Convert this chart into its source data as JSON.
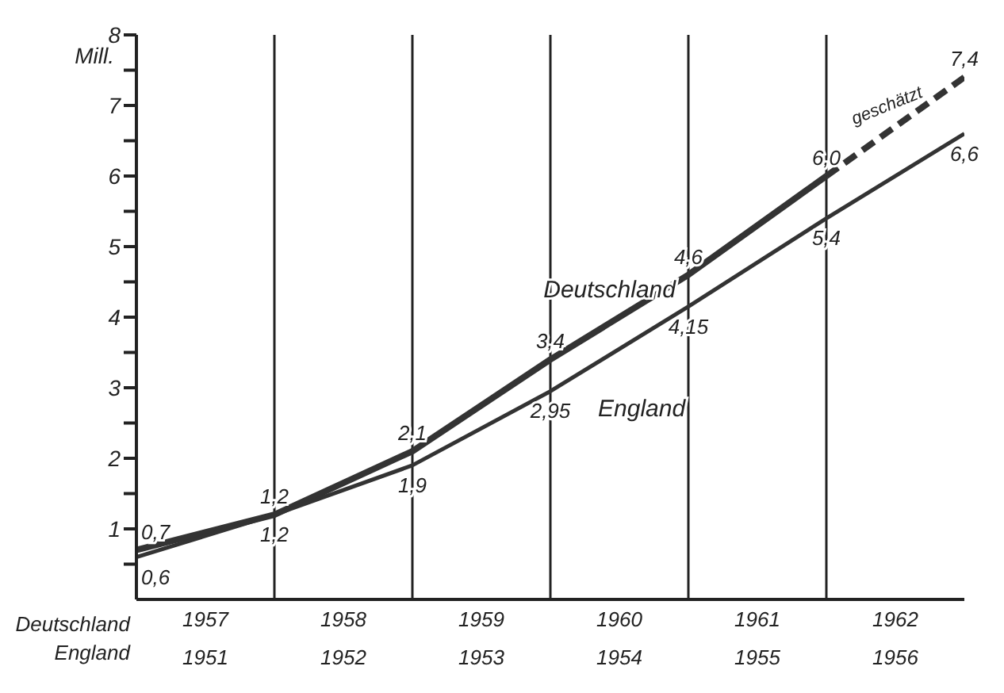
{
  "chart_data": {
    "type": "line",
    "xlabel": "Deutschland",
    "x2label": "England",
    "ylabel": "Mill.",
    "xlim": [
      1957,
      1963
    ],
    "xticks": [
      {
        "value": 1957.5,
        "label": "1957"
      },
      {
        "value": 1958.5,
        "label": "1958"
      },
      {
        "value": 1959.5,
        "label": "1959"
      },
      {
        "value": 1960.5,
        "label": "1960"
      },
      {
        "value": 1961.5,
        "label": "1961"
      },
      {
        "value": 1962.5,
        "label": "1962"
      }
    ],
    "x2lim": [
      1951,
      1957
    ],
    "x2ticks": [
      {
        "value": 1951.5,
        "label": "1951"
      },
      {
        "value": 1952.5,
        "label": "1952"
      },
      {
        "value": 1953.5,
        "label": "1953"
      },
      {
        "value": 1954.5,
        "label": "1954"
      },
      {
        "value": 1955.5,
        "label": "1955"
      },
      {
        "value": 1956.5,
        "label": "1956"
      }
    ],
    "ylim": [
      0,
      8
    ],
    "yticks": [
      {
        "value": 0.5,
        "label": null
      },
      1,
      {
        "value": 1.5,
        "label": null
      },
      2,
      {
        "value": 2.5,
        "label": null
      },
      3,
      {
        "value": 3.5,
        "label": null
      },
      4,
      {
        "value": 4.5,
        "label": null
      },
      5,
      {
        "value": 5.5,
        "label": null
      },
      6,
      {
        "value": 6.5,
        "label": null
      },
      7,
      {
        "value": 7.5,
        "label": null
      },
      8
    ],
    "ref_lines": [
      {
        "axis": "x",
        "value": 1958
      },
      {
        "axis": "x",
        "value": 1959
      },
      {
        "axis": "x",
        "value": 1960
      },
      {
        "axis": "x",
        "value": 1961
      },
      {
        "axis": "x",
        "value": 1962
      }
    ],
    "annotations": [
      "geschätzt"
    ],
    "series": [
      {
        "name": "Deutschland",
        "color": "#333333",
        "x": [
          1957,
          1958,
          1959,
          1960,
          1961,
          1962
        ],
        "values": [
          0.7,
          1.2,
          2.1,
          3.4,
          4.6,
          6.0
        ],
        "value_labels": [
          "0,7",
          "1,2",
          "2,1",
          "3,4",
          "4,6",
          "6,0"
        ]
      },
      {
        "color": "#333333",
        "line_style": "dashed",
        "x": [
          1962,
          1963
        ],
        "values": [
          6.0,
          7.4
        ],
        "value_labels": [
          null,
          "7,4"
        ]
      },
      {
        "name": "England",
        "color": "#333333",
        "axis": "x2",
        "x": [
          1951,
          1952,
          1953,
          1954,
          1955,
          1956,
          1957
        ],
        "values": [
          0.6,
          1.2,
          1.9,
          2.95,
          4.15,
          5.4,
          6.6
        ],
        "value_labels": [
          "0,6",
          "1,2",
          "1,9",
          "2,95",
          "4,15",
          "5,4",
          "6,6"
        ]
      }
    ]
  }
}
